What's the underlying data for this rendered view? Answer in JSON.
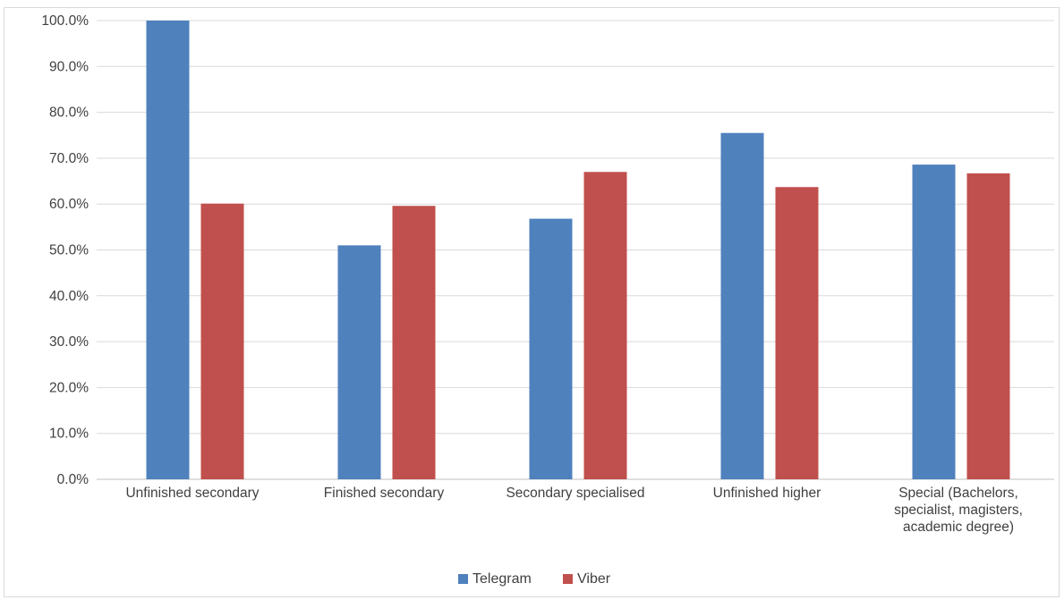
{
  "chart_data": {
    "type": "bar",
    "categories": [
      [
        "Unfinished secondary"
      ],
      [
        "Finished secondary"
      ],
      [
        "Secondary specialised"
      ],
      [
        "Unfinished higher"
      ],
      [
        "Special (Bachelors,",
        "specialist, magisters,",
        "academic degree)"
      ]
    ],
    "series": [
      {
        "name": "Telegram",
        "color": "#4f81bd",
        "values": [
          100.0,
          51.0,
          56.8,
          75.5,
          68.6
        ]
      },
      {
        "name": "Viber",
        "color": "#c0504d",
        "values": [
          60.1,
          59.6,
          67.0,
          63.7,
          66.7
        ]
      }
    ],
    "ylim": [
      0,
      100
    ],
    "yticks": [
      "0.0%",
      "10.0%",
      "20.0%",
      "30.0%",
      "40.0%",
      "50.0%",
      "60.0%",
      "70.0%",
      "80.0%",
      "90.0%",
      "100.0%"
    ],
    "grid": true,
    "legend_position": "bottom",
    "title": "",
    "xlabel": "",
    "ylabel": ""
  }
}
